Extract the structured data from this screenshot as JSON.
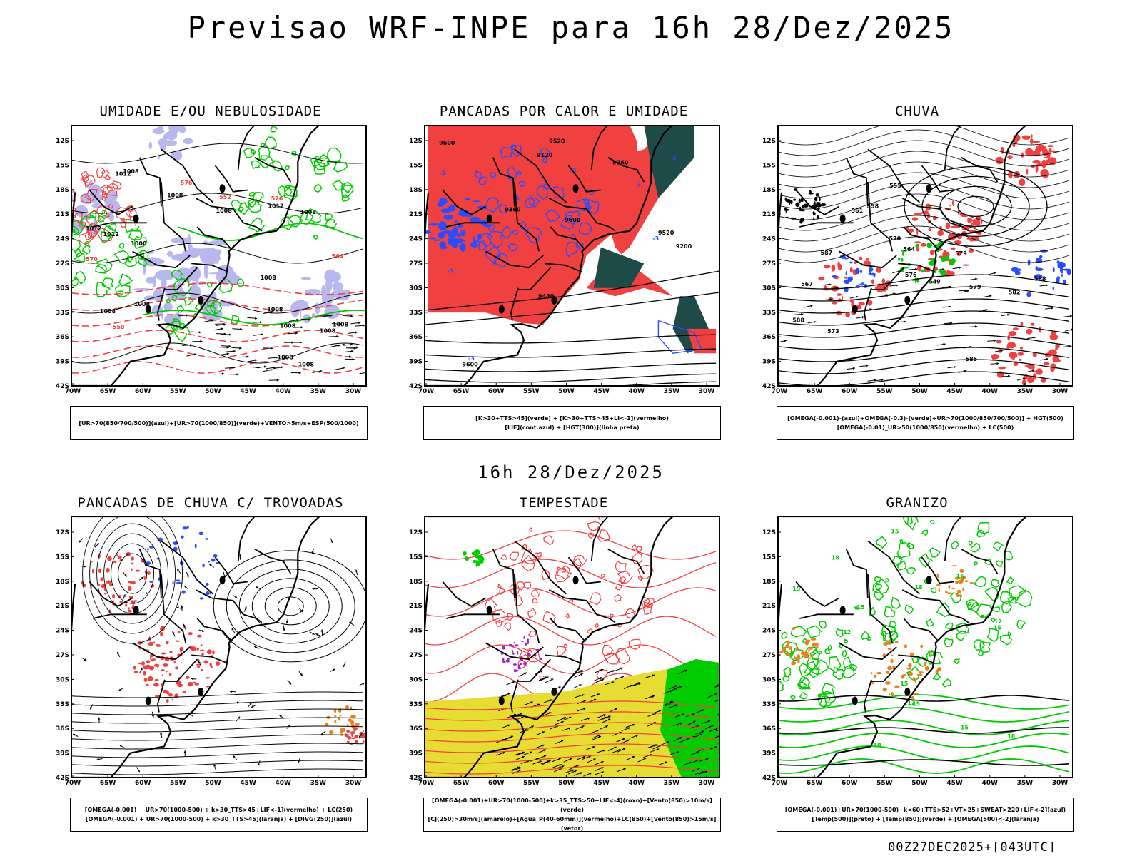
{
  "title": "Previsao WRF-INPE  para 16h 28/Dez/2025",
  "subtitle": "16h 28/Dez/2025",
  "footer": "00Z27DEC2025+[043UTC]",
  "axes": {
    "lat_labels": [
      "12S",
      "15S",
      "18S",
      "21S",
      "24S",
      "27S",
      "30S",
      "33S",
      "36S",
      "39S",
      "42S"
    ],
    "lon_labels": [
      "70W",
      "65W",
      "60W",
      "55W",
      "50W",
      "45W",
      "40W",
      "35W",
      "30W"
    ]
  },
  "colors": {
    "red": "#f04040",
    "green": "#00cc00",
    "blue": "#2a4cff",
    "lavender": "#b8b8ee",
    "darkteal": "#1e4a48",
    "yellow": "#e6dc32",
    "orange": "#e8821e",
    "purple": "#a020c0"
  },
  "panels": [
    {
      "id": "umidade",
      "title": "UMIDADE E/OU NEBULOSIDADE",
      "legend": [
        "[UR>70(850/700/500)](azul)+[UR>70(1000/850)](verde)+VENTO>5m/s+ESP(500/1000)"
      ],
      "contour_labels": [
        "1012",
        "1008",
        "1008",
        "1008",
        "1008",
        "1012",
        "1012",
        "1008",
        "1008",
        "1008",
        "1012",
        "1008",
        "1008",
        "1008",
        "1008",
        "1008",
        "1008",
        "1000",
        "570",
        "576",
        "576",
        "564",
        "552",
        "558"
      ]
    },
    {
      "id": "pancadas-calor",
      "title": "PANCADAS POR CALOR E UMIDADE",
      "legend": [
        "[K>30+TTS>45](verde) + [K>30+TTS>45+LI<-1](vermelho)",
        "[LIF](cont.azul) + [HGT(300)](linha preta)"
      ],
      "contour_labels": [
        "9600",
        "9600",
        "9600",
        "9520",
        "9520",
        "9440",
        "9360",
        "9360",
        "9200",
        "9120",
        "-3",
        "-3",
        "-3",
        "-3",
        "-3",
        "-3",
        "-3"
      ]
    },
    {
      "id": "chuva",
      "title": "CHUVA",
      "legend": [
        "[OMEGA(-0.001)-(azul)+OMEGA(-0.3)-(verde)+UR>70(1000/850/700/500)] + HGT(500)",
        "[OMEGA(-0.01)_UR>50(1000/850)(vermelho) + LC(500)"
      ],
      "contour_labels": [
        "588",
        "588",
        "585",
        "582",
        "579",
        "576",
        "573",
        "570",
        "567",
        "564",
        "561",
        "558",
        "555",
        "549",
        "587",
        "579"
      ]
    },
    {
      "id": "trovoadas",
      "title": "PANCADAS DE CHUVA C/ TROVOADAS",
      "legend": [
        "[OMEGA(-0.001) + UR>70(1000-500) + k>30_TTS>45+LIF<-1](vermelho) + LC(250)",
        "[OMEGA(-0.001) + UR>70(1000-500) + k>30_TTS>45](laranja) + [DIVG(250)](azul)"
      ],
      "contour_labels": []
    },
    {
      "id": "tempestade",
      "title": "TEMPESTADE",
      "legend": [
        "[OMEGA(-0.001)+UR>70(1000-500)+k>35_TTS>50+LIF<-4](roxo)+[Vento(850)>10m/s](verde)",
        "[CJ(250)>30m/s](amarelo)+[Agua_P(40-60mm)](vermelho)+LC(850)+[Vento(850)>15m/s](vetor)"
      ],
      "contour_labels": []
    },
    {
      "id": "granizo",
      "title": "GRANIZO",
      "legend": [
        "[OMEGA(-0.001)+UR>70(1000-500)+k<60+TTS>52+VT>25+SWEAT>220+LIF<-2](azul)",
        "[Temp(500)](preto) + [Temp(850)](verde) + [OMEGA(500)<-2](laranja)"
      ],
      "contour_labels": [
        "15",
        "15",
        "12",
        "12",
        "15",
        "18",
        "15",
        "12",
        "18",
        "15",
        "15",
        "18",
        "18",
        "15",
        "15"
      ]
    }
  ]
}
